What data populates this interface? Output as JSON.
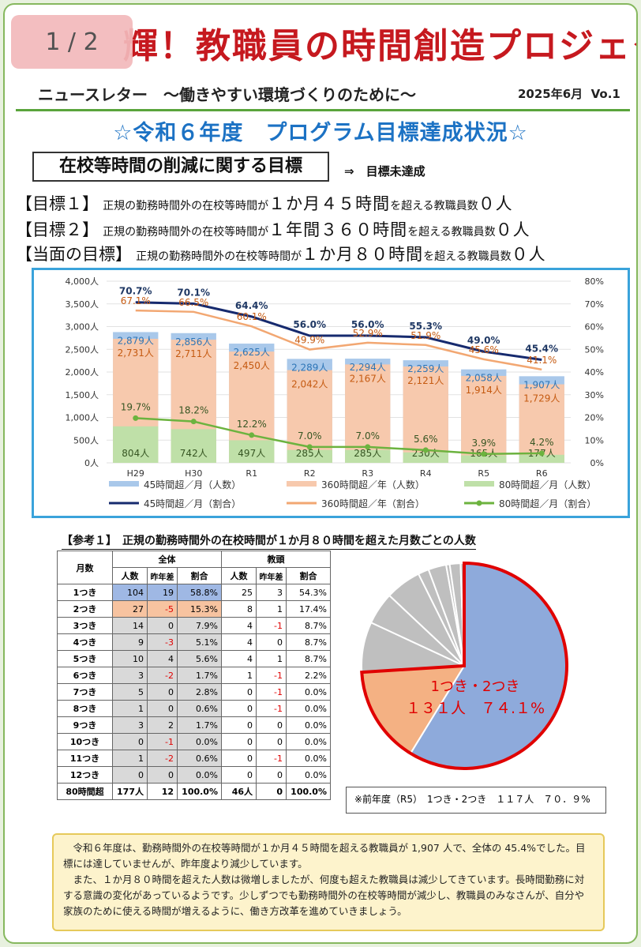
{
  "header": {
    "title_full": "きらり輝！教職員の時間創造プロジェクト",
    "title_visible": "輝！教職員の時間創造プロジェクト",
    "page_indicator": "1 / 2",
    "subtitle": "ニュースレター　～働きやすい環境づくりのために～",
    "date": "2025年6月",
    "vol": "Vo.1"
  },
  "section": {
    "heading": "☆令和６年度　プログラム目標達成状況☆",
    "box_label": "在校等時間の削減に関する目標",
    "status": "⇒　目標未達成"
  },
  "goals": [
    {
      "tag": "【目標１】",
      "text1": "正規の勤務時間外の在校等時間が",
      "big": "１か月４５時間",
      "text2": "を超える教職員数",
      "big2": "０人"
    },
    {
      "tag": "【目標２】",
      "text1": "正規の勤務時間外の在校等時間が",
      "big": "１年間３６０時間",
      "text2": "を超える教職員数",
      "big2": "０人"
    },
    {
      "tag": "【当面の目標】",
      "text1": "正規の勤務時間外の在校等時間が",
      "big": "１か月８０時間",
      "text2": "を超える教職員数",
      "big2": "０人"
    }
  ],
  "chart_data": {
    "type": "bar",
    "categories": [
      "H29",
      "H30",
      "R1",
      "R2",
      "R3",
      "R4",
      "R5",
      "R6"
    ],
    "y_left_ticks": [
      "0人",
      "500人",
      "1,000人",
      "1,500人",
      "2,000人",
      "2,500人",
      "3,000人",
      "3,500人",
      "4,000人"
    ],
    "y_right_ticks": [
      "0%",
      "10%",
      "20%",
      "30%",
      "40%",
      "50%",
      "60%",
      "70%",
      "80%"
    ],
    "ylim_left": [
      0,
      4000
    ],
    "ylim_right": [
      0,
      80
    ],
    "series": [
      {
        "name": "45時間超／月（人数）",
        "kind": "bar",
        "values": [
          2879,
          2856,
          2625,
          2289,
          2294,
          2259,
          2058,
          1907
        ],
        "labels": [
          "2,879人",
          "2,856人",
          "2,625人",
          "2,289人",
          "2,294人",
          "2,259人",
          "2,058人",
          "1,907人"
        ],
        "color": "#a9c8ea"
      },
      {
        "name": "360時間超／年（人数）",
        "kind": "bar",
        "values": [
          2731,
          2711,
          2450,
          2042,
          2167,
          2121,
          1914,
          1729
        ],
        "labels": [
          "2,731人",
          "2,711人",
          "2,450人",
          "2,042人",
          "2,167人",
          "2,121人",
          "1,914人",
          "1,729人"
        ],
        "color": "#f7c9ad"
      },
      {
        "name": "80時間超／月（人数）",
        "kind": "bar",
        "values": [
          804,
          742,
          497,
          285,
          285,
          230,
          165,
          177
        ],
        "labels": [
          "804人",
          "742人",
          "497人",
          "285人",
          "285人",
          "230人",
          "165人",
          "177人"
        ],
        "color": "#bfe0a8"
      },
      {
        "name": "45時間超／月（割合）",
        "kind": "line",
        "values": [
          70.7,
          70.1,
          64.4,
          56.0,
          56.0,
          55.3,
          49.0,
          45.4
        ],
        "labels": [
          "70.7%",
          "70.1%",
          "64.4%",
          "56.0%",
          "56.0%",
          "55.3%",
          "49.0%",
          "45.4%"
        ],
        "color": "#162a6e"
      },
      {
        "name": "360時間超／年（割合）",
        "kind": "line",
        "values": [
          67.1,
          66.5,
          60.1,
          49.9,
          52.9,
          51.9,
          45.6,
          41.1
        ],
        "labels": [
          "67.1%",
          "66.5%",
          "60.1%",
          "49.9%",
          "52.9%",
          "51.9%",
          "45.6%",
          "41.1%"
        ],
        "color": "#f2a772"
      },
      {
        "name": "80時間超／月（割合）",
        "kind": "line",
        "values": [
          19.7,
          18.2,
          12.2,
          7.0,
          7.0,
          5.6,
          3.9,
          4.2
        ],
        "labels": [
          "19.7%",
          "18.2%",
          "12.2%",
          "7.0%",
          "7.0%",
          "5.6%",
          "3.9%",
          "4.2%"
        ],
        "color": "#6cb33f"
      }
    ],
    "legend_position": "bottom"
  },
  "reference": {
    "title": "【参考１】　正規の勤務時間外の在校時間が１か月８０時間を超えた月数ごとの人数",
    "col_month": "月数",
    "group_all": "全体",
    "group_vice": "教頭",
    "sub_headers": [
      "人数",
      "昨年差",
      "割合",
      "人数",
      "昨年差",
      "割合"
    ],
    "rows": [
      {
        "label": "1つき",
        "a_n": "104",
        "a_d": "19",
        "a_p": "58.8%",
        "v_n": "25",
        "v_d": "3",
        "v_p": "54.3%"
      },
      {
        "label": "2つき",
        "a_n": "27",
        "a_d": "-5",
        "a_p": "15.3%",
        "v_n": "8",
        "v_d": "1",
        "v_p": "17.4%"
      },
      {
        "label": "3つき",
        "a_n": "14",
        "a_d": "0",
        "a_p": "7.9%",
        "v_n": "4",
        "v_d": "-1",
        "v_p": "8.7%"
      },
      {
        "label": "4つき",
        "a_n": "9",
        "a_d": "-3",
        "a_p": "5.1%",
        "v_n": "4",
        "v_d": "0",
        "v_p": "8.7%"
      },
      {
        "label": "5つき",
        "a_n": "10",
        "a_d": "4",
        "a_p": "5.6%",
        "v_n": "4",
        "v_d": "1",
        "v_p": "8.7%"
      },
      {
        "label": "6つき",
        "a_n": "3",
        "a_d": "-2",
        "a_p": "1.7%",
        "v_n": "1",
        "v_d": "-1",
        "v_p": "2.2%"
      },
      {
        "label": "7つき",
        "a_n": "5",
        "a_d": "0",
        "a_p": "2.8%",
        "v_n": "0",
        "v_d": "-1",
        "v_p": "0.0%"
      },
      {
        "label": "8つき",
        "a_n": "1",
        "a_d": "0",
        "a_p": "0.6%",
        "v_n": "0",
        "v_d": "-1",
        "v_p": "0.0%"
      },
      {
        "label": "9つき",
        "a_n": "3",
        "a_d": "2",
        "a_p": "1.7%",
        "v_n": "0",
        "v_d": "0",
        "v_p": "0.0%"
      },
      {
        "label": "10つき",
        "a_n": "0",
        "a_d": "-1",
        "a_p": "0.0%",
        "v_n": "0",
        "v_d": "0",
        "v_p": "0.0%"
      },
      {
        "label": "11つき",
        "a_n": "1",
        "a_d": "-2",
        "a_p": "0.6%",
        "v_n": "0",
        "v_d": "-1",
        "v_p": "0.0%"
      },
      {
        "label": "12つき",
        "a_n": "0",
        "a_d": "0",
        "a_p": "0.0%",
        "v_n": "0",
        "v_d": "0",
        "v_p": "0.0%"
      }
    ],
    "total": {
      "label": "80時間超",
      "a_n": "177人",
      "a_d": "12",
      "a_p": "100.0%",
      "v_n": "46人",
      "v_d": "0",
      "v_p": "100.0%"
    }
  },
  "pie": {
    "values": [
      104,
      27,
      14,
      9,
      10,
      3,
      5,
      1,
      3,
      0,
      1,
      0
    ],
    "highlight_line1": "1つき・2つき",
    "highlight_line2": "１３１人　７４.１%",
    "colors": {
      "first": "#8eaadb",
      "second": "#f4b183",
      "rest": "#bfbfbf",
      "outline": "#e00000"
    }
  },
  "prev_year_note": "※前年度（R5）　1つき・2つき　１１７人　７０．９%",
  "summary": [
    "令和６年度は、勤務時間外の在校等時間が１か月４５時間を超える教職員が 1,907 人で、全体の 45.4%でした。目標には達していませんが、昨年度より減少しています。",
    "また、１か月８０時間を超えた人数は微増しましたが、何度も超えた教職員は減少してきています。長時間勤務に対する意識の変化があっているようです。少しずつでも勤務時間外の在校等時間が減少し、教職員のみなさんが、自分や家族のために使える時間が増えるように、働き方改革を進めていきましょう。"
  ]
}
